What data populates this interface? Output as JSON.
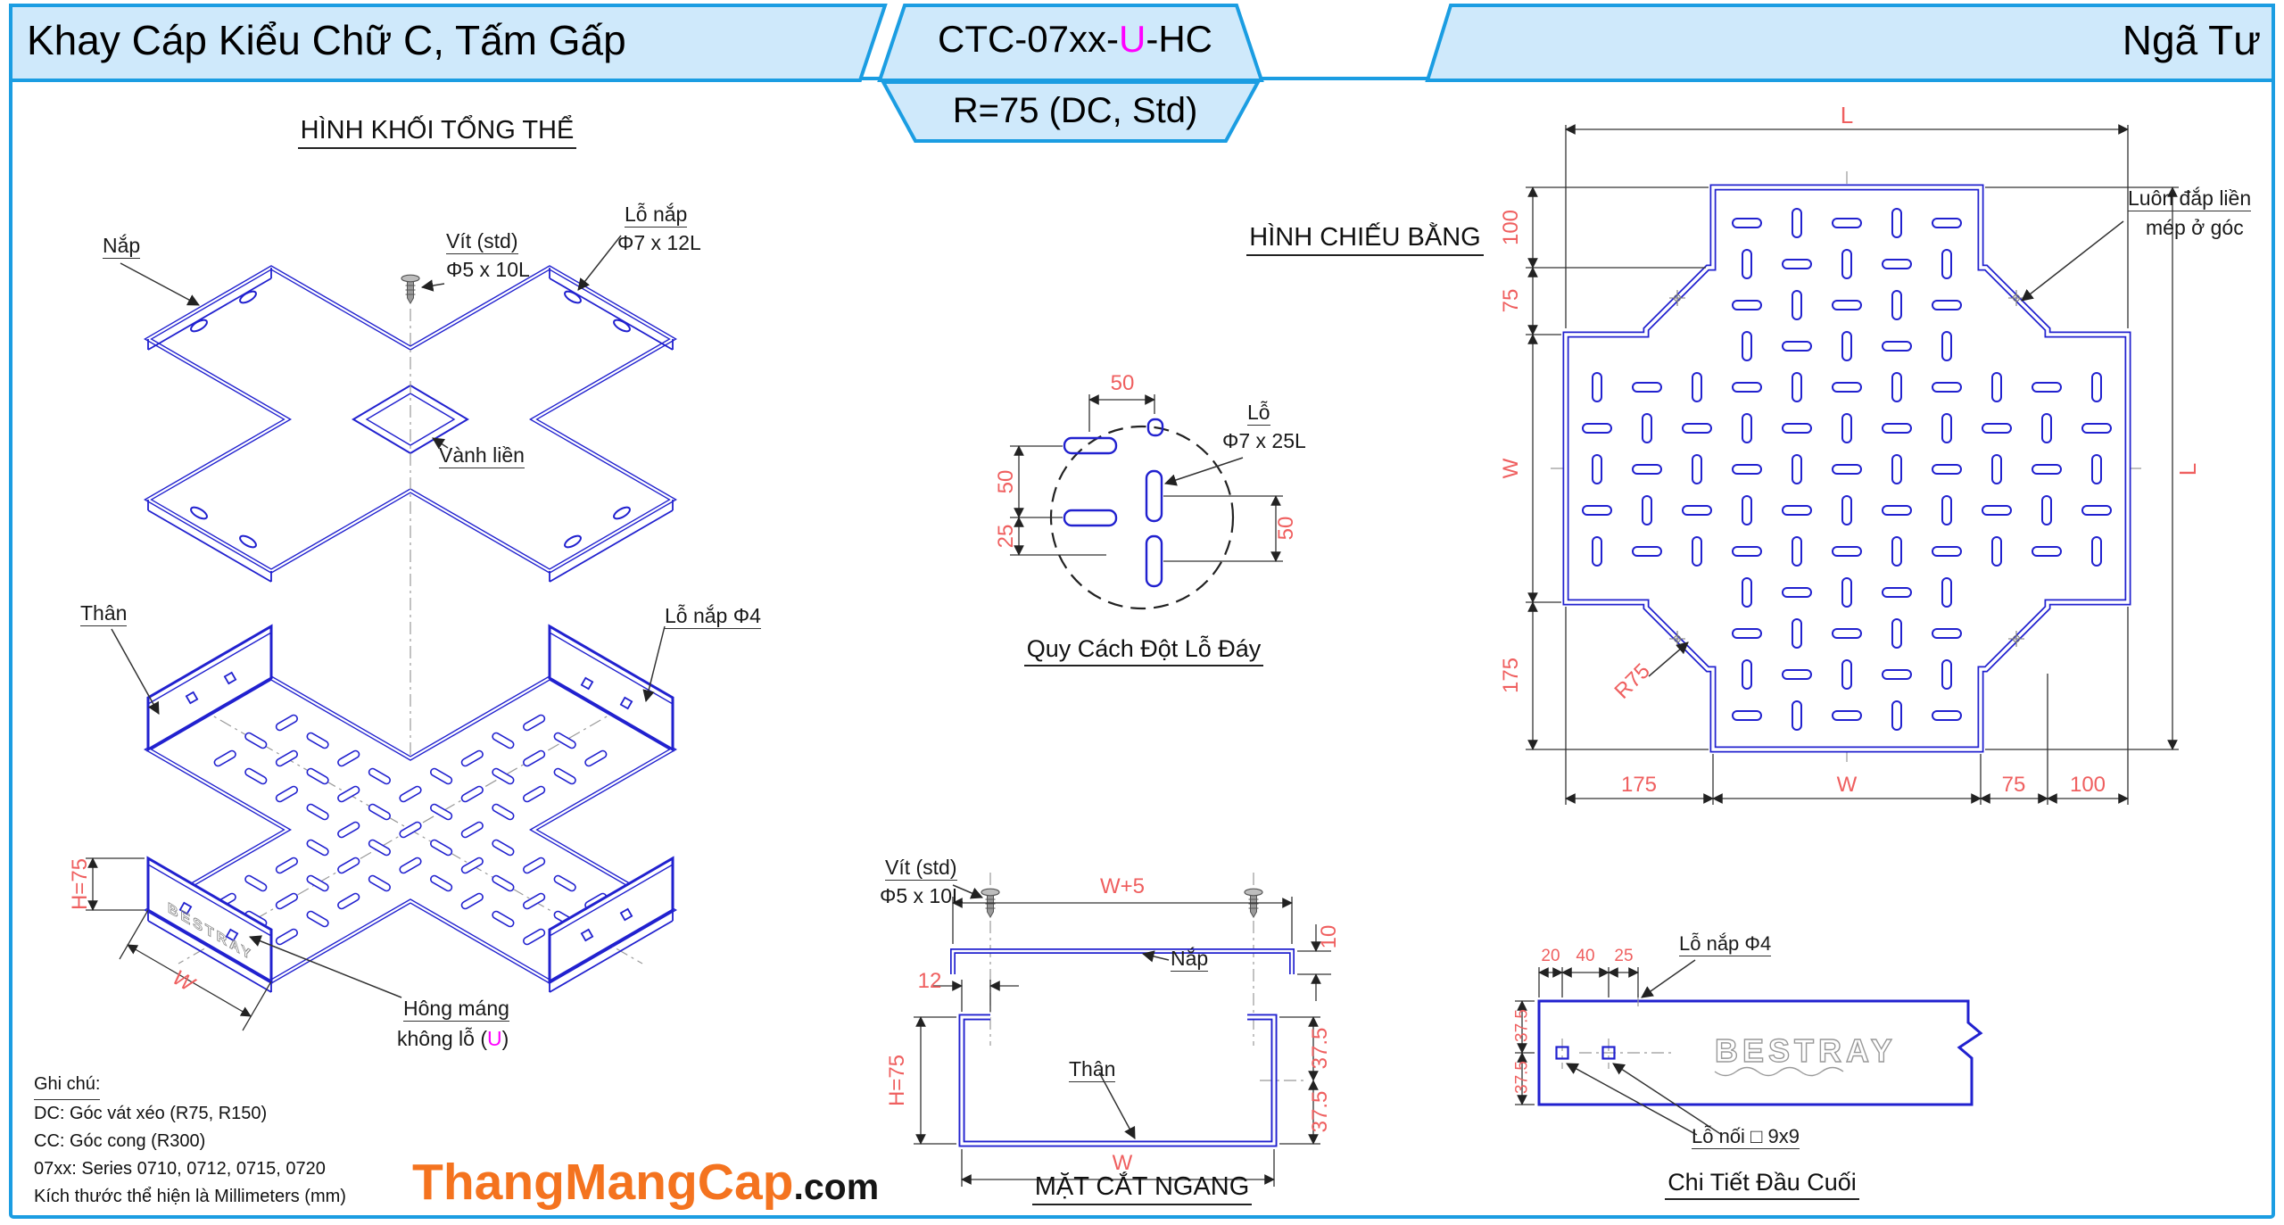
{
  "header": {
    "left_title": "Khay Cáp Kiểu Chữ C, Tấm Gấp",
    "model_prefix": "CTC-07xx-",
    "model_u": "U",
    "model_suffix": "-HC",
    "model_sub": "R=75 (DC, Std)",
    "right_title": "Ngã Tư"
  },
  "colors": {
    "header_fill": "#cfe9fb",
    "header_border": "#1b9de2",
    "line_blue": "#2121cf",
    "dim_red": "#ef5f5f",
    "magenta": "#ff00ff",
    "logo_orange": "#f4731f"
  },
  "iso": {
    "title": "HÌNH KHỐI TỔNG THỂ",
    "label_nap": "Nắp",
    "label_vit_1": "Vít (std)",
    "label_vit_2": "Φ5 x 10L",
    "label_lo_nap_1": "Lỗ nắp",
    "label_lo_nap_2": "Φ7 x 12L",
    "label_vanh_lien": "Vành liền",
    "label_than": "Thân",
    "label_lo_nap4": "Lỗ nắp Φ4",
    "label_hong_1": "Hông máng",
    "label_hong_2a": "không lỗ (",
    "label_hong_2b": "U",
    "label_hong_2c": ")",
    "dim_h": "H=75",
    "dim_w": "W",
    "bestray": "BESTRAY"
  },
  "punch_detail": {
    "title": "Quy Cách Đột Lỗ Đáy",
    "label_lo_1": "Lỗ",
    "label_lo_2": "Φ7 x 25L",
    "dim_top": "50",
    "dim_left_1": "50",
    "dim_left_2": "25",
    "dim_right": "50"
  },
  "plan": {
    "title": "HÌNH CHIẾU BẰNG",
    "dim_L_top": "L",
    "dim_L_right": "L",
    "dim_left": [
      "100",
      "75",
      "W",
      "175"
    ],
    "dim_bottom": [
      "175",
      "W",
      "75",
      "100"
    ],
    "dim_r75": "R75",
    "label_corner_1": "Luôn đắp liền",
    "label_corner_2": "mép ở góc"
  },
  "section": {
    "title": "MẶT CẮT NGANG",
    "label_vit_1": "Vít (std)",
    "label_vit_2": "Φ5 x 10L",
    "label_nap": "Nắp",
    "label_than": "Thân",
    "dim_w5": "W+5",
    "dim_10": "10",
    "dim_12": "12",
    "dim_h": "H=75",
    "dim_375a": "37.5",
    "dim_375b": "37.5",
    "dim_w": "W"
  },
  "end_detail": {
    "title": "Chi Tiết Đầu Cuối",
    "dims_top": [
      "20",
      "40",
      "25"
    ],
    "label_lo_nap": "Lỗ nắp Φ4",
    "dim_left_1": "37.5",
    "dim_left_2": "37.5",
    "bestray": "BESTRAY",
    "label_lo_noi": "Lỗ nối □ 9x9"
  },
  "notes": {
    "heading": "Ghi chú:",
    "lines": [
      "DC: Góc vát xéo (R75, R150)",
      "CC: Góc cong (R300)",
      "07xx: Series 0710, 0712, 0715, 0720",
      "Kích thước thể hiện là Millimeters (mm)"
    ]
  },
  "logo": {
    "main": "ThangMangCap",
    "tld": ".com"
  }
}
